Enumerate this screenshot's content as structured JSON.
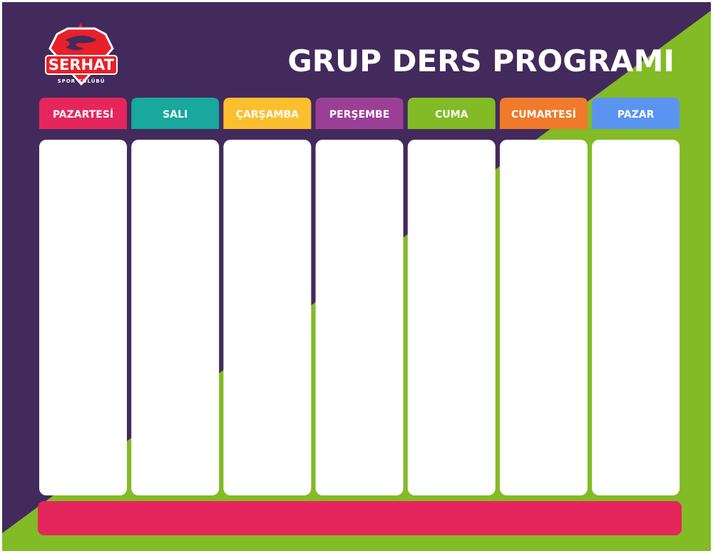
{
  "header": {
    "title": "GRUP DERS PROGRAMI",
    "logo_name": "SERHAT",
    "logo_subtitle": "SPOR KULÜBÜ"
  },
  "days": [
    "PAZARTESİ",
    "SALI",
    "ÇARŞAMBA",
    "PERŞEMBE",
    "CUMA",
    "CUMARTESİ",
    "PAZAR"
  ]
}
